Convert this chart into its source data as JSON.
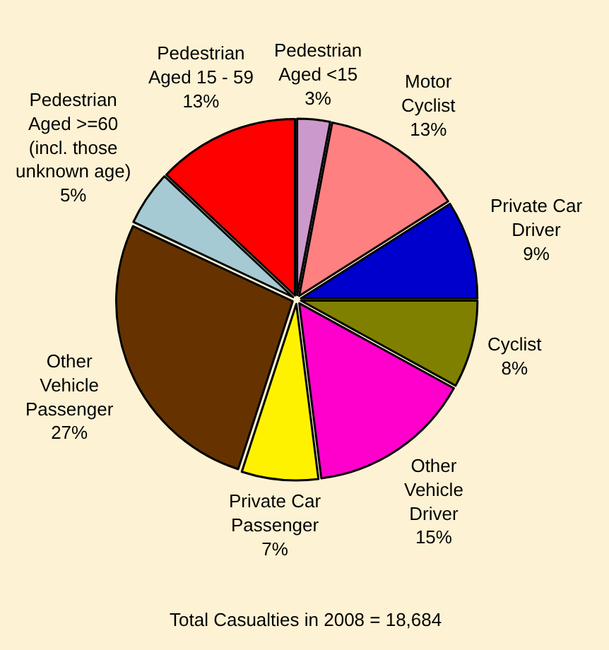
{
  "chart_data": {
    "type": "pie",
    "categories": [
      "Pedestrian\nAged <15",
      "Motor\nCyclist",
      "Private Car\nDriver",
      "Cyclist",
      "Other\nVehicle\nDriver",
      "Private Car\nPassenger",
      "Other\nVehicle\nPassenger",
      "Pedestrian\nAged >=60\n(incl. those\nunknown age)",
      "Pedestrian\nAged 15 - 59"
    ],
    "values": [
      3,
      13,
      9,
      8,
      15,
      7,
      27,
      5,
      13
    ],
    "value_labels": [
      "3%",
      "13%",
      "9%",
      "8%",
      "15%",
      "7%",
      "27%",
      "5%",
      "13%"
    ],
    "colors": [
      "#cc99cc",
      "#ff8080",
      "#0000cc",
      "#808000",
      "#ff00cc",
      "#fff200",
      "#663300",
      "#a6cad3",
      "#ff0000"
    ],
    "annotations": [
      "Total Casualties in 2008 = 18,684"
    ]
  }
}
